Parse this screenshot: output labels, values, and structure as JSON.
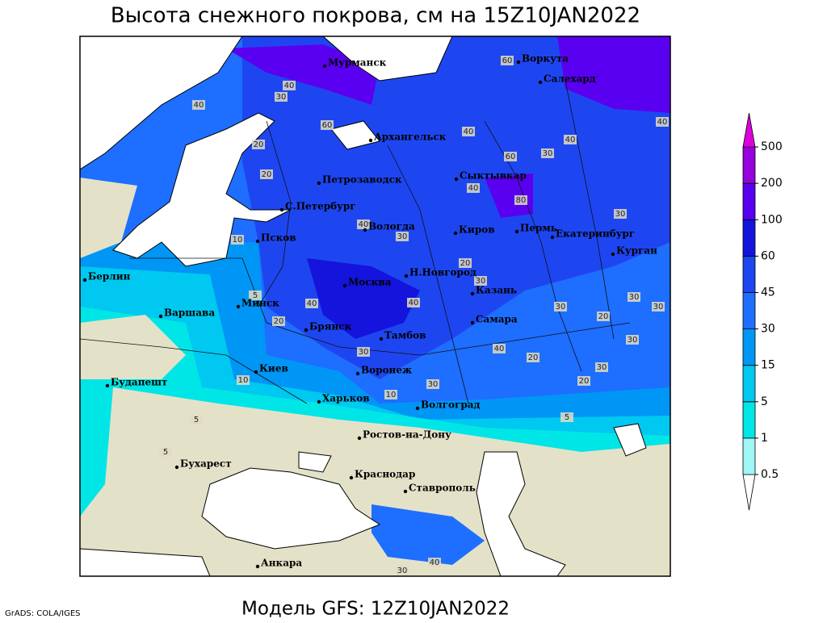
{
  "title": "Высота снежного покрова, см на 15Z10JAN2022",
  "footer": "Модель GFS: 12Z10JAN2022",
  "credit": "GrADS: COLA/IGES",
  "cities": [
    "Мурманск",
    "Воркута",
    "Салехард",
    "Архангельск",
    "Петрозаводск",
    "Сыктывкар",
    "С.Петербург",
    "Вологда",
    "Киров",
    "Пермь",
    "Екатеринбург",
    "Курган",
    "Псков",
    "Берлин",
    "Москва",
    "Н.Новгород",
    "Казань",
    "Минск",
    "Варшава",
    "Брянск",
    "Тамбов",
    "Самара",
    "Киев",
    "Воронеж",
    "Будапешт",
    "Харьков",
    "Волгоград",
    "Бухарест",
    "Ростов-на-Дону",
    "Краснодар",
    "Ставрополь",
    "Анкара"
  ],
  "contour_labels": [
    60,
    40,
    40,
    30,
    60,
    40,
    40,
    40,
    20,
    20,
    60,
    30,
    40,
    80,
    30,
    10,
    40,
    30,
    20,
    30,
    40,
    40,
    30,
    30,
    30,
    20,
    20,
    5,
    30,
    30,
    40,
    20,
    30,
    10,
    20,
    30,
    10,
    5,
    5,
    5,
    30,
    40
  ],
  "colorbar": {
    "levels": [
      0.5,
      1,
      5,
      15,
      30,
      45,
      60,
      100,
      200,
      500
    ],
    "colors": [
      "#ffffff",
      "#a0f5f5",
      "#00e6e6",
      "#00c8f0",
      "#0096f5",
      "#1e6eff",
      "#1e46f0",
      "#1414dc",
      "#5a00f0",
      "#9600dc",
      "#dc00dc"
    ]
  }
}
